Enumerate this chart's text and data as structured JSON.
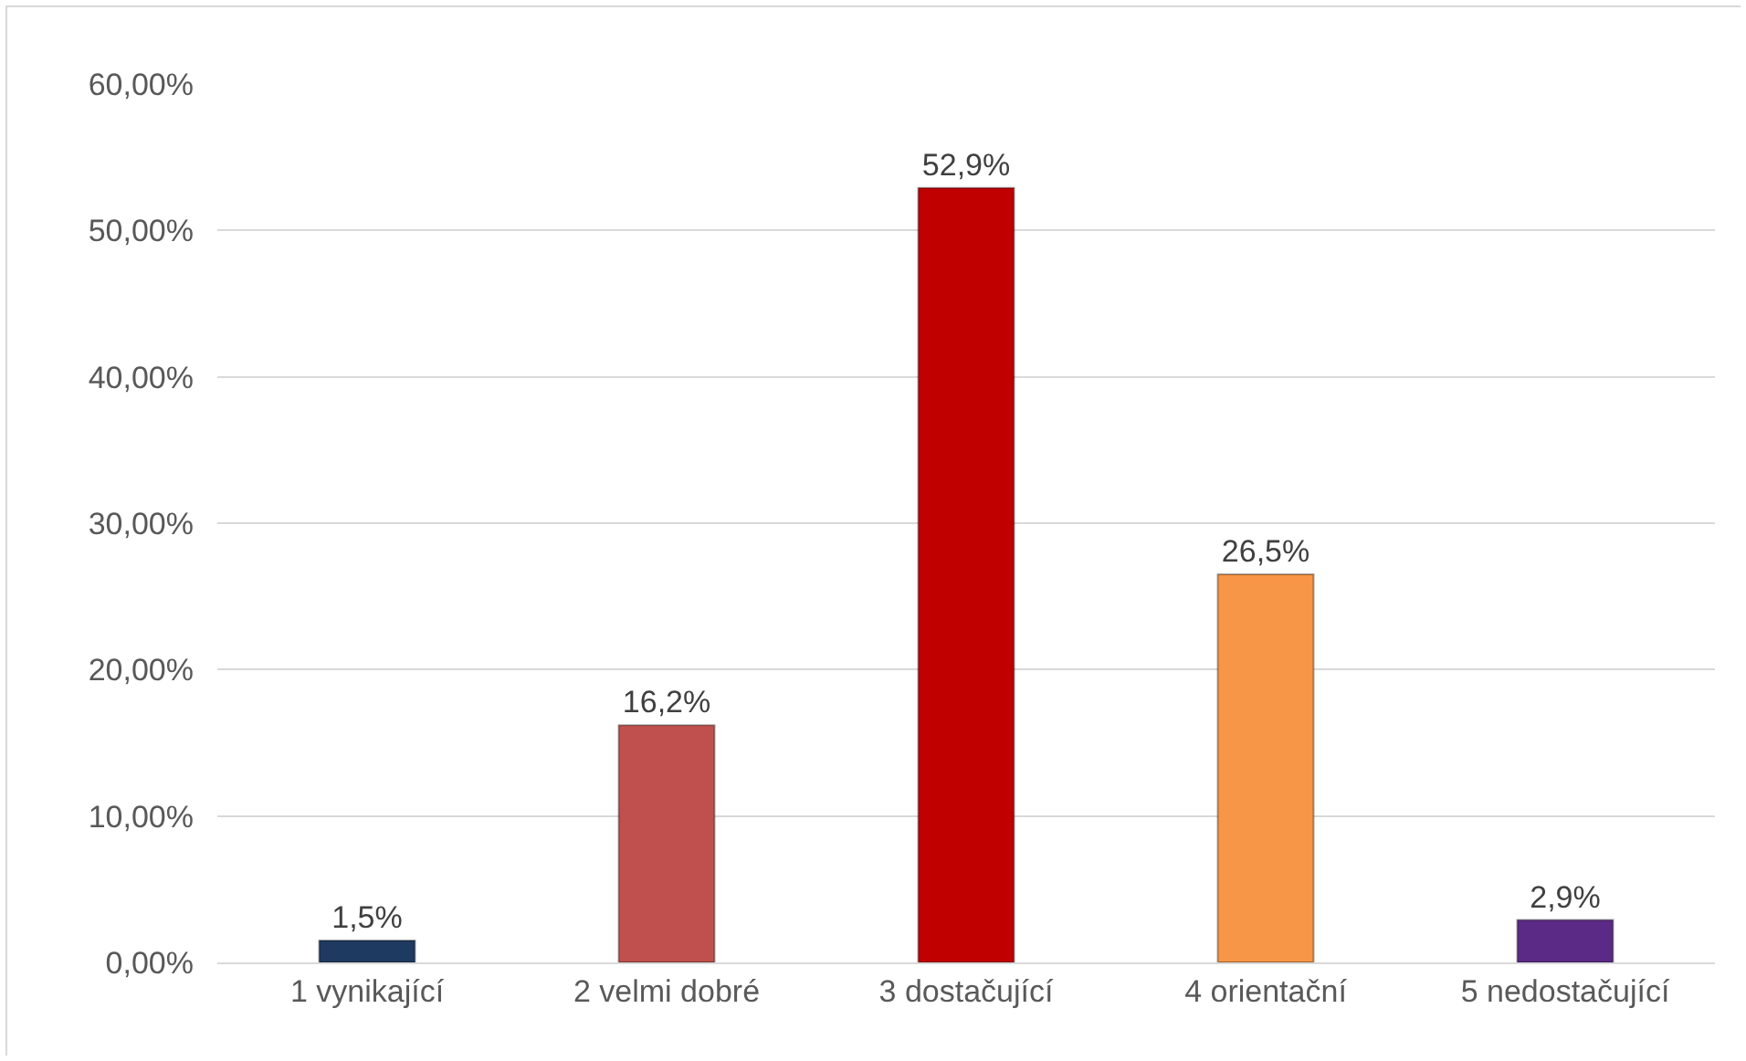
{
  "chart_data": {
    "type": "bar",
    "categories": [
      "1 vynikající",
      "2 velmi dobré",
      "3 dostačující",
      "4 orientační",
      "5 nedostačující"
    ],
    "values": [
      1.5,
      16.2,
      52.9,
      26.5,
      2.9
    ],
    "colors": [
      "#1f3a60",
      "#c0504d",
      "#c00000",
      "#f79646",
      "#5b2a86"
    ],
    "value_labels": [
      "1,5%",
      "16,2%",
      "52,9%",
      "26,5%",
      "2,9%"
    ],
    "ylim": [
      0,
      60
    ],
    "yticks": [
      {
        "value": 0,
        "label": "0,00%"
      },
      {
        "value": 10,
        "label": "10,00%"
      },
      {
        "value": 20,
        "label": "20,00%"
      },
      {
        "value": 30,
        "label": "30,00%"
      },
      {
        "value": 40,
        "label": "40,00%"
      },
      {
        "value": 50,
        "label": "50,00%"
      },
      {
        "value": 60,
        "label": "60,00%"
      }
    ],
    "grid": "y"
  }
}
